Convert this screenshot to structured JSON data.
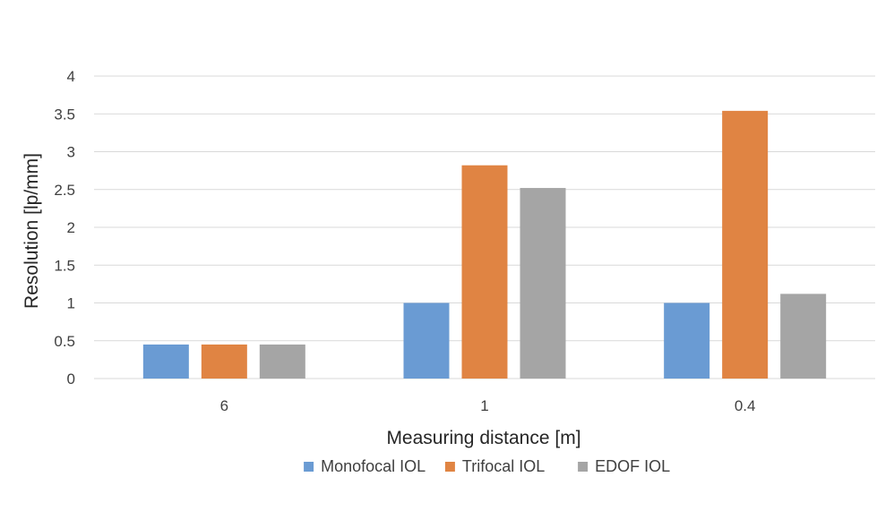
{
  "chart_data": {
    "type": "bar",
    "title": "",
    "xlabel": "Measuring distance [m]",
    "ylabel": "Resolution [lp/mm]",
    "categories": [
      "6",
      "1",
      "0.4"
    ],
    "series": [
      {
        "name": "Monofocal IOL",
        "color": "#6a9bd3",
        "values": [
          0.45,
          1.0,
          1.0
        ]
      },
      {
        "name": "Trifocal IOL",
        "color": "#e08443",
        "values": [
          0.45,
          2.82,
          3.54
        ]
      },
      {
        "name": "EDOF IOL",
        "color": "#a5a5a5",
        "values": [
          0.45,
          2.52,
          1.12
        ]
      }
    ],
    "ylim": [
      0,
      4
    ],
    "yticks": [
      "0",
      "0.5",
      "1",
      "1.5",
      "2",
      "2.5",
      "3",
      "3.5",
      "4"
    ],
    "grid": true,
    "legend_position": "bottom"
  }
}
